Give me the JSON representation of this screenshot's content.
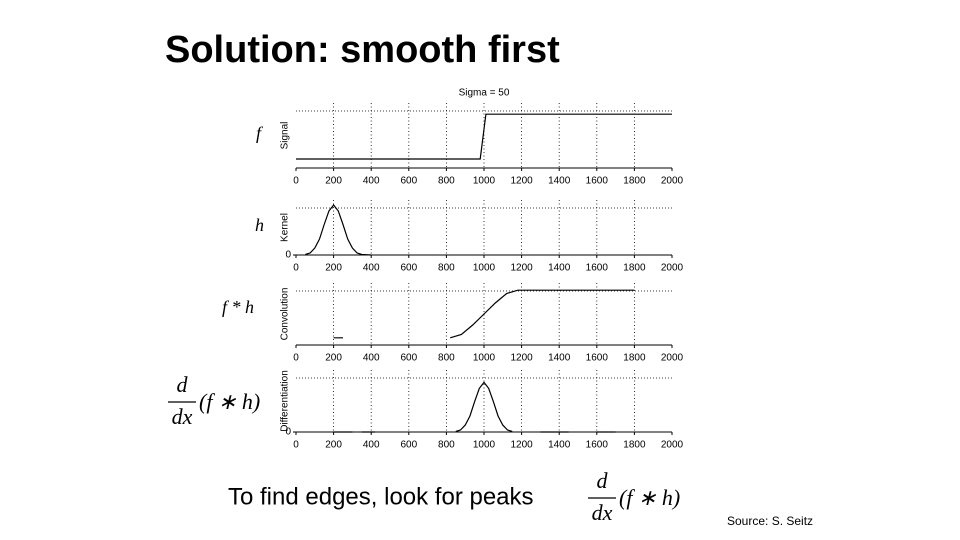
{
  "slide": {
    "title": "Solution: smooth first",
    "labels": {
      "f": "f",
      "h": "h",
      "fh": "f * h",
      "d_num": "d",
      "d_den": "dx",
      "d_arg": "(f ∗ h)"
    },
    "caption": "To find edges, look for peaks",
    "caption_formula": {
      "num": "d",
      "den": "dx",
      "arg": "(f ∗ h)"
    },
    "source": "Source: S. Seitz"
  },
  "chart_data": [
    {
      "type": "line",
      "title": "Sigma = 50",
      "ylabel": "Signal",
      "color": "#000000",
      "xlim": [
        0,
        2000
      ],
      "xticks": [
        0,
        200,
        400,
        600,
        800,
        1000,
        1200,
        1400,
        1600,
        1800,
        2000
      ],
      "ylim": [
        -0.2,
        1.25
      ],
      "grid": true,
      "x": [
        0,
        980,
        1010,
        2000
      ],
      "values": [
        0,
        0,
        1,
        1
      ]
    },
    {
      "type": "line",
      "ylabel": "Kernel",
      "color": "#000000",
      "xlim": [
        0,
        2000
      ],
      "xticks": [
        0,
        200,
        400,
        600,
        800,
        1000,
        1200,
        1400,
        1600,
        1800,
        2000
      ],
      "ylim": [
        0,
        1.1
      ],
      "yticks": [
        0
      ],
      "grid": true,
      "x": [
        50,
        75,
        100,
        125,
        150,
        175,
        200,
        225,
        250,
        275,
        300,
        325,
        350,
        400
      ],
      "values": [
        0.01,
        0.04,
        0.14,
        0.32,
        0.61,
        0.88,
        1,
        0.88,
        0.61,
        0.32,
        0.14,
        0.04,
        0.01,
        0
      ]
    },
    {
      "type": "line",
      "ylabel": "Convolution",
      "color": "#000000",
      "xlim": [
        0,
        2000
      ],
      "xticks": [
        0,
        200,
        400,
        600,
        800,
        1000,
        1200,
        1400,
        1600,
        1800,
        2000
      ],
      "ylim": [
        -0.15,
        1.15
      ],
      "grid": true,
      "x": [
        200,
        250,
        300,
        820,
        880,
        940,
        1000,
        1060,
        1120,
        1180,
        1800
      ],
      "values": [
        0,
        0,
        null,
        0,
        0.07,
        0.27,
        0.5,
        0.73,
        0.93,
        1,
        1
      ]
    },
    {
      "type": "line",
      "ylabel": "Differentiation",
      "color": "#000000",
      "xlim": [
        0,
        2000
      ],
      "xticks": [
        0,
        200,
        400,
        600,
        800,
        1000,
        1200,
        1400,
        1600,
        1800,
        2000
      ],
      "ylim": [
        0,
        1.25
      ],
      "yticks": [
        0
      ],
      "grid": true,
      "x": [
        200,
        300,
        320,
        350,
        420,
        440,
        850,
        875,
        900,
        925,
        950,
        975,
        1000,
        1025,
        1050,
        1075,
        1100,
        1125,
        1150,
        1160,
        1300,
        1450,
        1470,
        1600,
        1700
      ],
      "values": [
        0,
        0,
        null,
        0,
        0,
        null,
        0.01,
        0.04,
        0.14,
        0.32,
        0.61,
        0.88,
        1,
        0.88,
        0.61,
        0.32,
        0.14,
        0.04,
        0.01,
        null,
        0,
        0,
        null,
        0,
        0
      ]
    }
  ]
}
